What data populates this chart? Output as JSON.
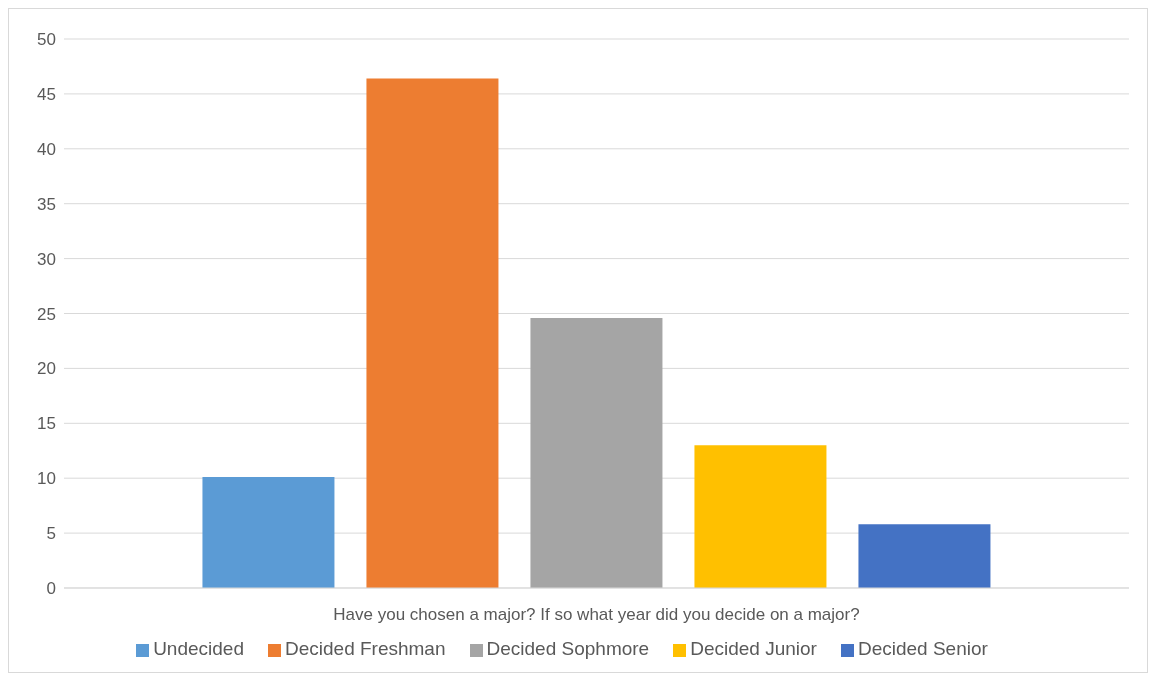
{
  "chart_data": {
    "type": "bar",
    "categories": [
      "Have you chosen a major? If so what year did you decide on a major?"
    ],
    "series": [
      {
        "name": "Undecided",
        "color": "#5b9bd5",
        "values": [
          10.1
        ]
      },
      {
        "name": "Decided Freshman",
        "color": "#ed7d31",
        "values": [
          46.4
        ]
      },
      {
        "name": "Decided Sophmore",
        "color": "#a5a5a5",
        "values": [
          24.6
        ]
      },
      {
        "name": "Decided Junior",
        "color": "#ffc000",
        "values": [
          13
        ]
      },
      {
        "name": "Decided Senior",
        "color": "#4472c4",
        "values": [
          5.8
        ]
      }
    ],
    "ylim": [
      0,
      50
    ],
    "yticks": [
      0,
      5,
      10,
      15,
      20,
      25,
      30,
      35,
      40,
      45,
      50
    ],
    "grid": "y",
    "legend": "bottom"
  }
}
